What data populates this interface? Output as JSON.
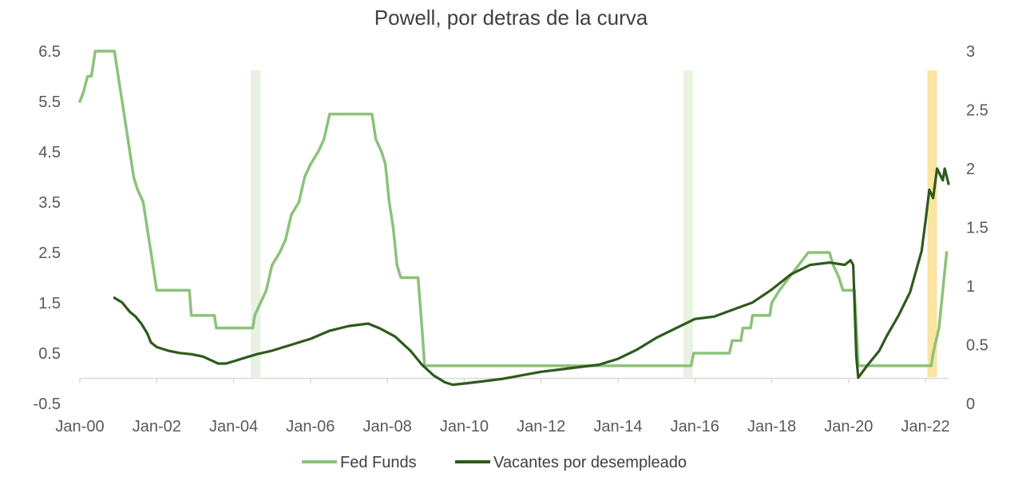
{
  "chart_data": {
    "type": "line",
    "title": "Powell, por detras de la curva",
    "xlabel": "",
    "ylabel": "",
    "x_ticks": [
      "Jan-00",
      "Jan-02",
      "Jan-04",
      "Jan-06",
      "Jan-08",
      "Jan-10",
      "Jan-12",
      "Jan-14",
      "Jan-16",
      "Jan-18",
      "Jan-20",
      "Jan-22"
    ],
    "y_left_ticks": [
      "6.5",
      "5.5",
      "4.5",
      "3.5",
      "2.5",
      "1.5",
      "0.5",
      "-0.5"
    ],
    "y_right_ticks": [
      "3",
      "2.5",
      "2",
      "1.5",
      "1",
      "0.5",
      "0"
    ],
    "ylim_left": [
      -0.5,
      6.5
    ],
    "ylim_right": [
      0,
      3
    ],
    "grid": false,
    "legend_position": "bottom",
    "highlight_bands": [
      {
        "start": 2004.45,
        "end": 2004.7,
        "color": "#e7f2e1"
      },
      {
        "start": 2015.7,
        "end": 2015.95,
        "color": "#e7f2e1"
      },
      {
        "start": 2022.05,
        "end": 2022.3,
        "color": "#fbe5a0"
      }
    ],
    "series": [
      {
        "name": "Fed Funds",
        "axis": "left",
        "color": "#8cc27a",
        "points": [
          [
            2000.0,
            5.5
          ],
          [
            2000.1,
            5.7
          ],
          [
            2000.2,
            6.0
          ],
          [
            2000.3,
            6.0
          ],
          [
            2000.4,
            6.5
          ],
          [
            2000.9,
            6.5
          ],
          [
            2001.0,
            6.0
          ],
          [
            2001.1,
            5.5
          ],
          [
            2001.2,
            5.0
          ],
          [
            2001.3,
            4.5
          ],
          [
            2001.4,
            4.0
          ],
          [
            2001.5,
            3.75
          ],
          [
            2001.65,
            3.5
          ],
          [
            2001.75,
            3.0
          ],
          [
            2001.85,
            2.5
          ],
          [
            2001.95,
            2.0
          ],
          [
            2002.0,
            1.75
          ],
          [
            2002.85,
            1.75
          ],
          [
            2002.9,
            1.25
          ],
          [
            2003.5,
            1.25
          ],
          [
            2003.55,
            1.0
          ],
          [
            2004.5,
            1.0
          ],
          [
            2004.55,
            1.25
          ],
          [
            2004.7,
            1.5
          ],
          [
            2004.85,
            1.75
          ],
          [
            2005.0,
            2.25
          ],
          [
            2005.2,
            2.5
          ],
          [
            2005.35,
            2.75
          ],
          [
            2005.5,
            3.25
          ],
          [
            2005.7,
            3.5
          ],
          [
            2005.85,
            4.0
          ],
          [
            2006.0,
            4.25
          ],
          [
            2006.2,
            4.5
          ],
          [
            2006.35,
            4.75
          ],
          [
            2006.5,
            5.25
          ],
          [
            2007.6,
            5.25
          ],
          [
            2007.7,
            4.75
          ],
          [
            2007.85,
            4.5
          ],
          [
            2007.95,
            4.25
          ],
          [
            2008.05,
            3.5
          ],
          [
            2008.15,
            3.0
          ],
          [
            2008.25,
            2.25
          ],
          [
            2008.35,
            2.0
          ],
          [
            2008.8,
            2.0
          ],
          [
            2008.9,
            1.0
          ],
          [
            2008.97,
            0.25
          ],
          [
            2015.9,
            0.25
          ],
          [
            2015.97,
            0.5
          ],
          [
            2016.9,
            0.5
          ],
          [
            2016.97,
            0.75
          ],
          [
            2017.2,
            0.75
          ],
          [
            2017.25,
            1.0
          ],
          [
            2017.45,
            1.0
          ],
          [
            2017.5,
            1.25
          ],
          [
            2017.95,
            1.25
          ],
          [
            2018.0,
            1.5
          ],
          [
            2018.2,
            1.75
          ],
          [
            2018.45,
            2.0
          ],
          [
            2018.7,
            2.25
          ],
          [
            2018.95,
            2.5
          ],
          [
            2019.5,
            2.5
          ],
          [
            2019.6,
            2.25
          ],
          [
            2019.75,
            2.0
          ],
          [
            2019.85,
            1.75
          ],
          [
            2020.15,
            1.75
          ],
          [
            2020.2,
            1.0
          ],
          [
            2020.25,
            0.25
          ],
          [
            2022.15,
            0.25
          ],
          [
            2022.2,
            0.5
          ],
          [
            2022.35,
            1.0
          ],
          [
            2022.45,
            1.75
          ],
          [
            2022.55,
            2.5
          ]
        ]
      },
      {
        "name": "Vacantes por desempleado",
        "axis": "right",
        "color": "#2e5a1c",
        "points": [
          [
            2000.9,
            0.9
          ],
          [
            2001.0,
            0.88
          ],
          [
            2001.1,
            0.86
          ],
          [
            2001.2,
            0.82
          ],
          [
            2001.3,
            0.78
          ],
          [
            2001.45,
            0.74
          ],
          [
            2001.6,
            0.68
          ],
          [
            2001.75,
            0.6
          ],
          [
            2001.85,
            0.52
          ],
          [
            2002.0,
            0.48
          ],
          [
            2002.3,
            0.45
          ],
          [
            2002.6,
            0.43
          ],
          [
            2002.9,
            0.42
          ],
          [
            2003.2,
            0.4
          ],
          [
            2003.4,
            0.37
          ],
          [
            2003.6,
            0.34
          ],
          [
            2003.8,
            0.34
          ],
          [
            2004.0,
            0.36
          ],
          [
            2004.3,
            0.39
          ],
          [
            2004.6,
            0.42
          ],
          [
            2005.0,
            0.45
          ],
          [
            2005.5,
            0.5
          ],
          [
            2006.0,
            0.55
          ],
          [
            2006.5,
            0.62
          ],
          [
            2007.0,
            0.66
          ],
          [
            2007.5,
            0.68
          ],
          [
            2007.8,
            0.64
          ],
          [
            2008.2,
            0.57
          ],
          [
            2008.6,
            0.45
          ],
          [
            2008.9,
            0.33
          ],
          [
            2009.2,
            0.24
          ],
          [
            2009.5,
            0.18
          ],
          [
            2009.7,
            0.16
          ],
          [
            2010.0,
            0.17
          ],
          [
            2010.5,
            0.19
          ],
          [
            2011.0,
            0.21
          ],
          [
            2011.5,
            0.24
          ],
          [
            2012.0,
            0.27
          ],
          [
            2012.5,
            0.29
          ],
          [
            2013.0,
            0.31
          ],
          [
            2013.5,
            0.33
          ],
          [
            2014.0,
            0.38
          ],
          [
            2014.5,
            0.46
          ],
          [
            2015.0,
            0.56
          ],
          [
            2015.5,
            0.64
          ],
          [
            2016.0,
            0.72
          ],
          [
            2016.5,
            0.74
          ],
          [
            2017.0,
            0.8
          ],
          [
            2017.5,
            0.86
          ],
          [
            2018.0,
            0.97
          ],
          [
            2018.5,
            1.1
          ],
          [
            2019.0,
            1.18
          ],
          [
            2019.5,
            1.2
          ],
          [
            2019.9,
            1.18
          ],
          [
            2020.05,
            1.22
          ],
          [
            2020.12,
            1.18
          ],
          [
            2020.2,
            0.4
          ],
          [
            2020.25,
            0.22
          ],
          [
            2020.5,
            0.33
          ],
          [
            2020.8,
            0.45
          ],
          [
            2021.0,
            0.58
          ],
          [
            2021.3,
            0.75
          ],
          [
            2021.6,
            0.95
          ],
          [
            2021.9,
            1.3
          ],
          [
            2022.0,
            1.55
          ],
          [
            2022.1,
            1.82
          ],
          [
            2022.2,
            1.75
          ],
          [
            2022.3,
            2.0
          ],
          [
            2022.45,
            1.9
          ],
          [
            2022.5,
            2.0
          ],
          [
            2022.6,
            1.87
          ]
        ]
      }
    ]
  }
}
